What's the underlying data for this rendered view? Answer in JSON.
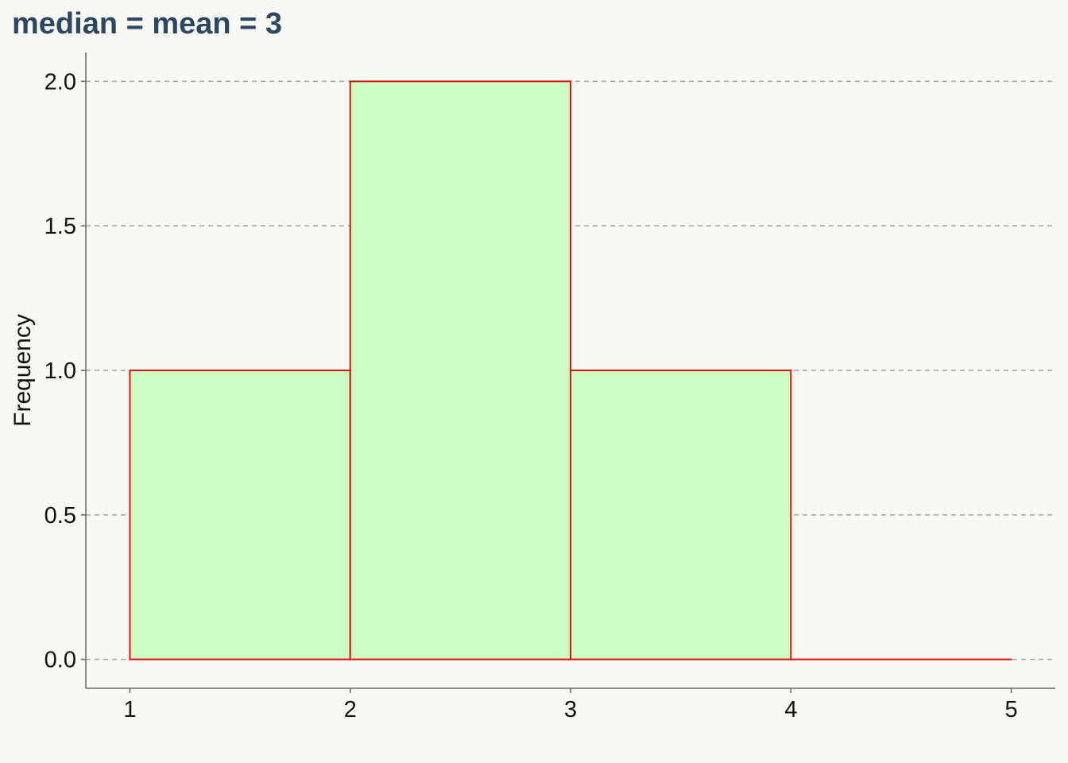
{
  "chart_data": {
    "type": "bar",
    "title": "median = mean = 3",
    "xlabel": "",
    "ylabel": "Frequency",
    "bins": [
      {
        "x0": 1,
        "x1": 2,
        "count": 1
      },
      {
        "x0": 2,
        "x1": 3,
        "count": 2
      },
      {
        "x0": 3,
        "x1": 4,
        "count": 1
      },
      {
        "x0": 4,
        "x1": 5,
        "count": 0
      }
    ],
    "xticks": [
      "1",
      "2",
      "3",
      "4",
      "5"
    ],
    "xtick_values": [
      1,
      2,
      3,
      4,
      5
    ],
    "yticks": [
      "0.0",
      "0.5",
      "1.0",
      "1.5",
      "2.0"
    ],
    "ytick_values": [
      0,
      0.5,
      1.0,
      1.5,
      2.0
    ],
    "xlim": [
      0.8,
      5.2
    ],
    "ylim": [
      -0.1,
      2.1
    ],
    "grid": {
      "y": true,
      "x": false,
      "style": "dashed"
    },
    "colors": {
      "bar_fill": "#ccfbc4",
      "bar_edge": "#dd1111",
      "title": "#2b4863",
      "grid": "#a6a6a6",
      "axis": "#666666",
      "background": "#faf8f3"
    }
  }
}
